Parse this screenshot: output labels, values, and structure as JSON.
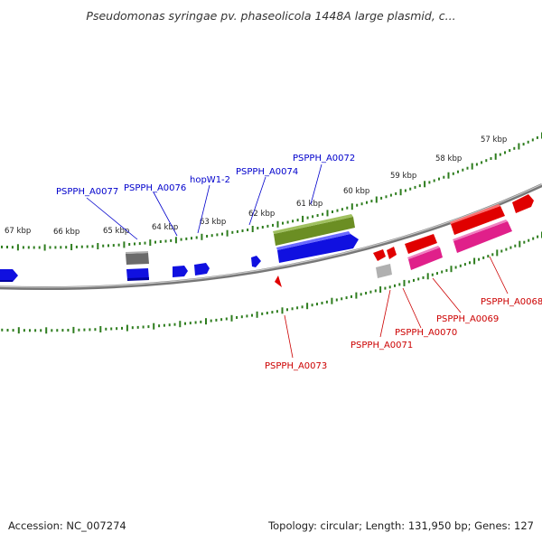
{
  "title": "Pseudomonas syringae pv. phaseolicola 1448A large plasmid, c...",
  "footer": {
    "accession": "Accession: NC_007274",
    "summary": "Topology: circular; Length: 131,950 bp; Genes: 127"
  },
  "colors": {
    "backbone": "#8a8a8a",
    "ruler": "#2e7d1e",
    "forward_label": "#0000cc",
    "reverse_label": "#cc0000",
    "gene_blue": "#1010e0",
    "gene_red": "#e00000",
    "gene_magenta": "#e0208a",
    "gene_olive": "#6b8e23",
    "gene_gray": "#707070"
  },
  "ruler_labels": [
    "67 kbp",
    "66 kbp",
    "65 kbp",
    "64 kbp",
    "63 kbp",
    "62 kbp",
    "61 kbp",
    "60 kbp",
    "59 kbp",
    "58 kbp",
    "57 kbp"
  ],
  "forward_gene_labels": [
    "PSPPH_A0077",
    "PSPPH_A0076",
    "hopW1-2",
    "PSPPH_A0074",
    "PSPPH_A0072"
  ],
  "reverse_gene_labels": [
    "PSPPH_A0073",
    "PSPPH_A0071",
    "PSPPH_A0070",
    "PSPPH_A0069",
    "PSPPH_A0068"
  ]
}
